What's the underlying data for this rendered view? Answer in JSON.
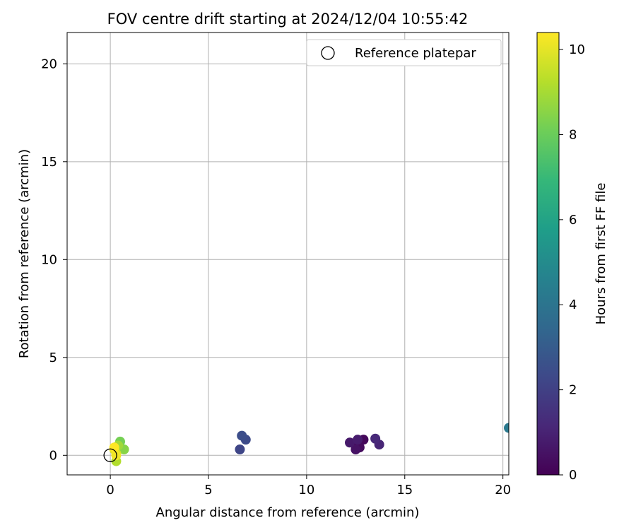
{
  "chart_data": {
    "type": "scatter",
    "title": "FOV centre drift starting at 2024/12/04 10:55:42",
    "xlabel": "Angular distance from reference (arcmin)",
    "ylabel": "Rotation from reference (arcmin)",
    "xlim": [
      -2.2,
      20.3
    ],
    "ylim": [
      -1.0,
      21.6
    ],
    "xticks": [
      0,
      5,
      10,
      15,
      20
    ],
    "yticks": [
      0,
      5,
      10,
      15,
      20
    ],
    "grid": true,
    "legend": {
      "placement": "top-right",
      "entries": [
        "Reference platepar"
      ]
    },
    "reference_point": {
      "label": "Reference platepar",
      "x": 0,
      "y": 0
    },
    "colorbar": {
      "label": "Hours from first FF file",
      "colormap": "viridis",
      "range": [
        0,
        10.4
      ],
      "ticks": [
        0,
        2,
        4,
        6,
        8,
        10
      ]
    },
    "points": [
      {
        "x": 12.6,
        "y": 0.5,
        "hours": 0.1
      },
      {
        "x": 12.9,
        "y": 0.8,
        "hours": 0.2
      },
      {
        "x": 12.7,
        "y": 0.4,
        "hours": 0.3
      },
      {
        "x": 12.5,
        "y": 0.3,
        "hours": 0.5
      },
      {
        "x": 12.2,
        "y": 0.65,
        "hours": 0.7
      },
      {
        "x": 12.6,
        "y": 0.8,
        "hours": 0.8
      },
      {
        "x": 13.7,
        "y": 0.55,
        "hours": 1.1
      },
      {
        "x": 13.5,
        "y": 0.85,
        "hours": 1.2
      },
      {
        "x": 6.6,
        "y": 0.3,
        "hours": 2.2
      },
      {
        "x": 6.9,
        "y": 0.8,
        "hours": 2.4
      },
      {
        "x": 6.7,
        "y": 1.0,
        "hours": 2.5
      },
      {
        "x": 20.3,
        "y": 1.4,
        "hours": 4.2
      },
      {
        "x": 0.5,
        "y": 0.7,
        "hours": 8.2
      },
      {
        "x": 0.7,
        "y": 0.3,
        "hours": 8.5
      },
      {
        "x": 0.4,
        "y": 0.5,
        "hours": 8.9
      },
      {
        "x": 0.3,
        "y": -0.3,
        "hours": 9.2
      },
      {
        "x": 0.3,
        "y": 0.1,
        "hours": 9.6
      },
      {
        "x": 0.2,
        "y": 0.3,
        "hours": 9.9
      },
      {
        "x": 0.3,
        "y": 0.0,
        "hours": 10.2
      },
      {
        "x": 0.2,
        "y": 0.4,
        "hours": 10.4
      }
    ]
  }
}
